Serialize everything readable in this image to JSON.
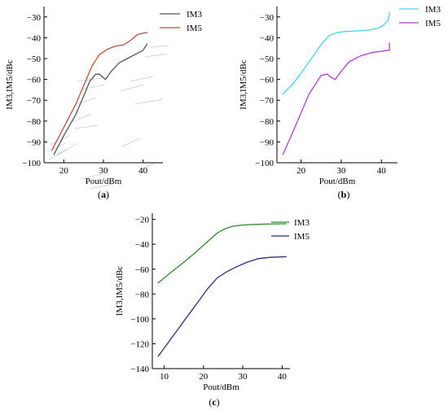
{
  "chart_data": [
    {
      "panel": "a",
      "type": "line",
      "caption": "(a)",
      "xlabel": "Pout/dBm",
      "ylabel": "IM3,IM5/dBc",
      "xlim": [
        15,
        45
      ],
      "ylim": [
        -100,
        -25
      ],
      "xticks": [
        20,
        30,
        40
      ],
      "yticks": [
        -100,
        -90,
        -80,
        -70,
        -60,
        -50,
        -40,
        -30
      ],
      "legend_position": "top-right",
      "series": [
        {
          "name": "IM3",
          "color": "#555555",
          "x": [
            17.5,
            20,
            23,
            25,
            26.5,
            28,
            29,
            30.5,
            32,
            34,
            36,
            38,
            40,
            41
          ],
          "y": [
            -96,
            -87,
            -77,
            -68,
            -61,
            -57.5,
            -57.5,
            -60,
            -56,
            -52,
            -50,
            -48,
            -46,
            -43
          ]
        },
        {
          "name": "IM5",
          "color": "#c0503a",
          "x": [
            17,
            20,
            23,
            25,
            27,
            29,
            31,
            33,
            35,
            37,
            38.5,
            40,
            41
          ],
          "y": [
            -94,
            -83,
            -72,
            -63,
            -54,
            -48,
            -45.5,
            -44,
            -43.5,
            -41,
            -38.5,
            -37.8,
            -37.5
          ]
        }
      ]
    },
    {
      "panel": "b",
      "type": "line",
      "caption": "(b)",
      "xlabel": "Pout/dBm",
      "ylabel": "IM3,IM5/dBc",
      "xlim": [
        14,
        44
      ],
      "ylim": [
        -100,
        -25
      ],
      "xticks": [
        20,
        30,
        40
      ],
      "yticks": [
        -100,
        -90,
        -80,
        -70,
        -60,
        -50,
        -40,
        -30
      ],
      "legend_position": "top-right",
      "series": [
        {
          "name": "IM3",
          "color": "#44d6e8",
          "x": [
            15.5,
            18,
            20,
            22,
            24,
            25.5,
            27,
            29,
            31,
            34,
            37,
            39,
            40.5,
            41.5,
            42,
            42
          ],
          "y": [
            -67,
            -62,
            -57,
            -51.5,
            -46,
            -42,
            -39,
            -37.5,
            -37,
            -36.7,
            -36.3,
            -35.5,
            -34,
            -32,
            -29,
            -28
          ]
        },
        {
          "name": "IM5",
          "color": "#b03cd3",
          "x": [
            15.5,
            18,
            20,
            22,
            24,
            25,
            26.5,
            27.5,
            28.5,
            30,
            32,
            35,
            38,
            40,
            41.5,
            42,
            42
          ],
          "y": [
            -96,
            -85,
            -76,
            -67,
            -61,
            -58,
            -57.5,
            -59,
            -60,
            -56,
            -51.5,
            -48.5,
            -47,
            -46.5,
            -46,
            -46,
            -42.5
          ]
        }
      ]
    },
    {
      "panel": "c",
      "type": "line",
      "caption": "(c)",
      "xlabel": "Pout/dBm",
      "ylabel": "IM3,IM5/dBc",
      "xlim": [
        7,
        42
      ],
      "ylim": [
        -140,
        -15
      ],
      "xticks": [
        10,
        20,
        30,
        40
      ],
      "yticks": [
        -140,
        -120,
        -100,
        -80,
        -60,
        -40,
        -20
      ],
      "legend_position": "top-right",
      "series": [
        {
          "name": "IM3",
          "color": "#2f8a2a",
          "x": [
            8.5,
            12,
            15,
            18,
            21,
            23.5,
            25.5,
            27.5,
            30,
            33,
            36,
            39,
            41
          ],
          "y": [
            -71,
            -62,
            -54.5,
            -46.5,
            -38,
            -31,
            -27.5,
            -25.5,
            -24.5,
            -24,
            -23.8,
            -23.6,
            -23.5
          ]
        },
        {
          "name": "IM5",
          "color": "#25307e",
          "x": [
            8.5,
            12,
            15,
            18,
            21,
            23.5,
            26,
            28.5,
            31,
            34,
            37,
            41
          ],
          "y": [
            -130,
            -115,
            -102,
            -89,
            -76,
            -67,
            -62,
            -58,
            -54.5,
            -51.5,
            -50.5,
            -50
          ]
        }
      ]
    }
  ]
}
